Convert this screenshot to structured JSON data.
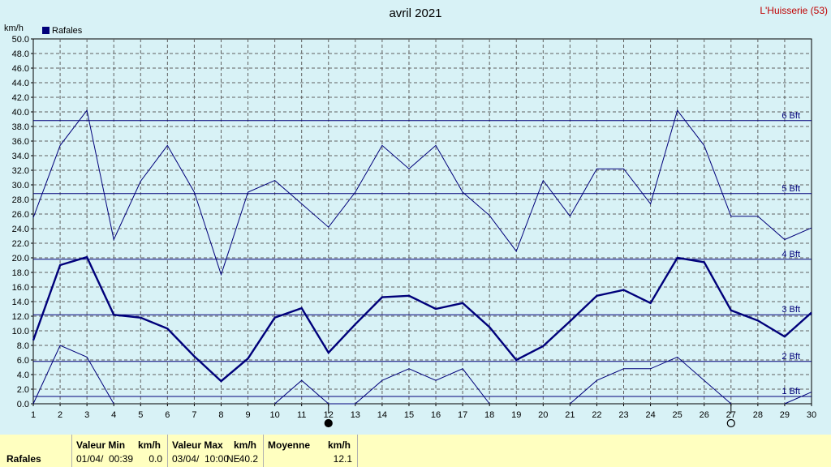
{
  "window": {
    "title": "avril 2021",
    "station": "L'Huisserie (53)"
  },
  "colors": {
    "background": "#d8f2f6",
    "series": "#00007a",
    "bft": "#00007a",
    "stats_bg": "#ffffc0"
  },
  "chart_data": {
    "type": "line",
    "title": "avril 2021",
    "ylabel": "km/h",
    "ylim": [
      0,
      50
    ],
    "yticks": [
      "0.0",
      "2.0",
      "4.0",
      "6.0",
      "8.0",
      "10.0",
      "12.0",
      "14.0",
      "16.0",
      "18.0",
      "20.0",
      "22.0",
      "24.0",
      "26.0",
      "28.0",
      "30.0",
      "32.0",
      "34.0",
      "36.0",
      "38.0",
      "40.0",
      "42.0",
      "44.0",
      "46.0",
      "48.0",
      "50.0"
    ],
    "x": [
      1,
      2,
      3,
      4,
      5,
      6,
      7,
      8,
      9,
      10,
      11,
      12,
      13,
      14,
      15,
      16,
      17,
      18,
      19,
      20,
      21,
      22,
      23,
      24,
      25,
      26,
      27,
      28,
      29,
      30
    ],
    "grid": true,
    "legend": "top-left",
    "series": [
      {
        "name": "Rafales",
        "role": "moyenne",
        "values": [
          8.7,
          19.0,
          20.1,
          12.2,
          11.8,
          10.3,
          6.5,
          3.1,
          6.2,
          11.8,
          13.1,
          7.0,
          10.9,
          14.6,
          14.8,
          13.0,
          13.8,
          10.5,
          6.0,
          7.9,
          11.3,
          14.8,
          15.6,
          13.8,
          20.0,
          19.4,
          12.8,
          11.4,
          9.2,
          12.5
        ]
      },
      {
        "name": "",
        "role": "max",
        "values": [
          25.5,
          35.4,
          40.2,
          22.5,
          30.5,
          35.4,
          29.0,
          17.7,
          29.0,
          30.6,
          27.4,
          24.2,
          29.0,
          35.4,
          32.2,
          35.4,
          29.0,
          25.8,
          20.9,
          30.6,
          25.7,
          32.2,
          32.2,
          27.4,
          40.2,
          35.4,
          25.7,
          25.7,
          22.5,
          24.1
        ]
      },
      {
        "name": "",
        "role": "min",
        "values": [
          0.0,
          8.0,
          6.4,
          0.0,
          null,
          null,
          null,
          null,
          null,
          0.0,
          3.2,
          0.0,
          0.0,
          3.2,
          4.8,
          3.2,
          4.8,
          0.0,
          null,
          null,
          0.0,
          3.2,
          4.8,
          4.8,
          6.4,
          3.2,
          0.0,
          null,
          0.0,
          1.6
        ]
      }
    ],
    "beaufort": [
      {
        "label": "1 Bft",
        "value": 1.0
      },
      {
        "label": "2 Bft",
        "value": 5.8
      },
      {
        "label": "3 Bft",
        "value": 12.2
      },
      {
        "label": "4 Bft",
        "value": 19.8
      },
      {
        "label": "5 Bft",
        "value": 28.8
      },
      {
        "label": "6 Bft",
        "value": 38.8
      }
    ],
    "moon": [
      {
        "day": 12,
        "phase": "new"
      },
      {
        "day": 27,
        "phase": "full"
      }
    ]
  },
  "stats": {
    "row_label": "Rafales",
    "min": {
      "header": "Valeur Min",
      "unit": "km/h",
      "date": "01/04/",
      "time": "00:39",
      "value": "0.0"
    },
    "max": {
      "header": "Valeur Max",
      "unit": "km/h",
      "date": "03/04/",
      "time": "10:00",
      "dir": "NE",
      "value": "40.2"
    },
    "avg": {
      "header": "Moyenne",
      "unit": "km/h",
      "value": "12.1"
    }
  }
}
